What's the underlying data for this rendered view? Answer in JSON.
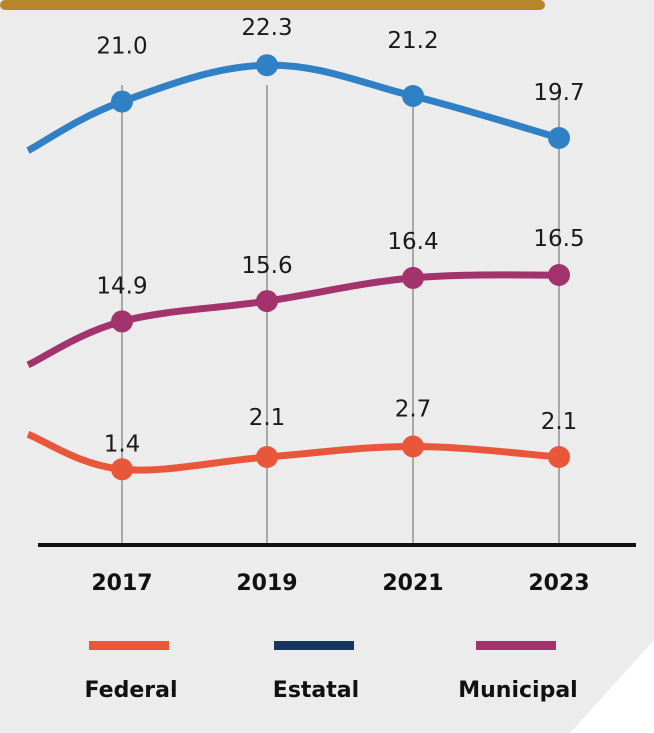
{
  "colors": {
    "panel": "#ececec",
    "top_bar": "#b8862a",
    "axis": "#111111",
    "guide": "#a8a8a8",
    "Federal": "#e8573a",
    "Estatal": "#2f80c4",
    "Estatal_legend": "#17375e",
    "Municipal": "#a3336d"
  },
  "chart_data": {
    "type": "line",
    "title": "",
    "xlabel": "",
    "ylabel": "",
    "x": [
      "2017",
      "2019",
      "2021",
      "2023"
    ],
    "series": [
      {
        "name": "Estatal",
        "values": [
          21.0,
          22.3,
          21.2,
          19.7
        ],
        "labels": [
          "21.0",
          "22.3",
          "21.2",
          "19.7"
        ]
      },
      {
        "name": "Municipal",
        "values": [
          14.9,
          15.6,
          16.4,
          16.5
        ],
        "labels": [
          "14.9",
          "15.6",
          "16.4",
          "16.5"
        ]
      },
      {
        "name": "Federal",
        "values": [
          1.4,
          2.1,
          2.7,
          2.1
        ],
        "labels": [
          "1.4",
          "2.1",
          "2.7",
          "2.1"
        ]
      }
    ],
    "legend": {
      "placement": "bottom",
      "order": [
        "Federal",
        "Estatal",
        "Municipal"
      ]
    },
    "grid": "vertical guide lines at each year"
  }
}
